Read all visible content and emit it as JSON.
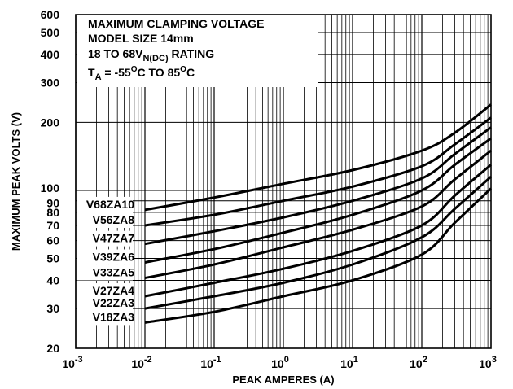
{
  "chart_data": {
    "type": "line",
    "xlabel": "PEAK AMPERES (A)",
    "ylabel": "MAXIMUM PEAK VOLTS (V)",
    "x_scale": "log",
    "y_scale": "log",
    "xlim": [
      0.001,
      1000
    ],
    "ylim": [
      20,
      600
    ],
    "grid": true,
    "legend": "none",
    "x_ticks": [
      {
        "value": 0.001,
        "base": "10",
        "exp": "-3"
      },
      {
        "value": 0.01,
        "base": "10",
        "exp": "-2"
      },
      {
        "value": 0.1,
        "base": "10",
        "exp": "-1"
      },
      {
        "value": 1,
        "base": "10",
        "exp": "0"
      },
      {
        "value": 10,
        "base": "10",
        "exp": "1"
      },
      {
        "value": 100,
        "base": "10",
        "exp": "2"
      },
      {
        "value": 1000,
        "base": "10",
        "exp": "3"
      }
    ],
    "y_ticks": [
      {
        "value": 20,
        "label": "20"
      },
      {
        "value": 30,
        "label": "30"
      },
      {
        "value": 40,
        "label": "40"
      },
      {
        "value": 50,
        "label": "50"
      },
      {
        "value": 60,
        "label": "60"
      },
      {
        "value": 70,
        "label": "70"
      },
      {
        "value": 80,
        "label": "80"
      },
      {
        "value": 90,
        "label": "90"
      },
      {
        "value": 100,
        "label": "100"
      },
      {
        "value": 200,
        "label": "200"
      },
      {
        "value": 300,
        "label": "300"
      },
      {
        "value": 400,
        "label": "400"
      },
      {
        "value": 500,
        "label": "500"
      },
      {
        "value": 600,
        "label": "600"
      }
    ],
    "annotation": {
      "line1": "MAXIMUM CLAMPING VOLTAGE",
      "line2": "MODEL SIZE 14mm",
      "line3_pre": "18 TO 68V",
      "line3_sub": "N(DC)",
      "line3_post": " RATING",
      "line4_t": "T",
      "line4_sub": "A",
      "line4_mid": " = -55",
      "line4_deg1": "O",
      "line4_mid2": "C TO 85",
      "line4_deg2": "O",
      "line4_end": "C"
    },
    "series": [
      {
        "name": "V68ZA10",
        "x": [
          0.01,
          0.1,
          1,
          10,
          100,
          300,
          1000
        ],
        "y": [
          82,
          93,
          107,
          123,
          150,
          180,
          240
        ]
      },
      {
        "name": "V56ZA8",
        "x": [
          0.01,
          0.1,
          1,
          10,
          100,
          300,
          1000
        ],
        "y": [
          70,
          78,
          90,
          104,
          128,
          160,
          210
        ]
      },
      {
        "name": "V47ZA7",
        "x": [
          0.01,
          0.1,
          1,
          10,
          100,
          300,
          1000
        ],
        "y": [
          58,
          66,
          76,
          90,
          113,
          145,
          190
        ]
      },
      {
        "name": "V39ZA6",
        "x": [
          0.01,
          0.1,
          1,
          10,
          100,
          300,
          1000
        ],
        "y": [
          48,
          55,
          65,
          78,
          100,
          130,
          170
        ]
      },
      {
        "name": "V33ZA5",
        "x": [
          0.01,
          0.1,
          1,
          10,
          100,
          300,
          1000
        ],
        "y": [
          41,
          47,
          56,
          67,
          85,
          112,
          150
        ]
      },
      {
        "name": "V27ZA4",
        "x": [
          0.01,
          0.1,
          1,
          10,
          100,
          300,
          1000
        ],
        "y": [
          34,
          39,
          45,
          54,
          70,
          95,
          130
        ]
      },
      {
        "name": "V22ZA3",
        "x": [
          0.01,
          0.1,
          1,
          10,
          100,
          300,
          1000
        ],
        "y": [
          30,
          34,
          39,
          47,
          62,
          83,
          115
        ]
      },
      {
        "name": "V18ZA3",
        "x": [
          0.01,
          0.1,
          1,
          10,
          100,
          300,
          1000
        ],
        "y": [
          26,
          29,
          34,
          40,
          52,
          72,
          102
        ]
      }
    ]
  }
}
